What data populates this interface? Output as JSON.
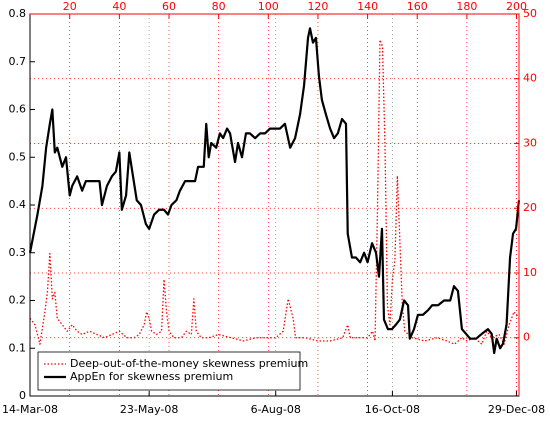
{
  "chart_data": {
    "type": "line",
    "xlim": [
      4,
      201
    ],
    "xticks": [
      {
        "value": 4,
        "label": "14-Mar-08"
      },
      {
        "value": 52,
        "label": "23-May-08"
      },
      {
        "value": 103,
        "label": "6-Aug-08"
      },
      {
        "value": 150,
        "label": "16-Oct-08"
      },
      {
        "value": 200,
        "label": "29-Dec-08"
      }
    ],
    "x2ticks": [
      20,
      40,
      60,
      80,
      100,
      120,
      140,
      160,
      180,
      200
    ],
    "ylim": [
      0,
      0.8
    ],
    "yticks": [
      0,
      0.1,
      0.2,
      0.3,
      0.4,
      0.5,
      0.6,
      0.7,
      0.8
    ],
    "y2lim": [
      -9,
      50
    ],
    "y2ticks": [
      0,
      10,
      20,
      30,
      40,
      50
    ],
    "legend": "lower left",
    "series": [
      {
        "name": "Deep-out-of-the-money skewness premium",
        "color": "#ff0000",
        "style": "dotted",
        "axis": "y2",
        "x": [
          4,
          6,
          8,
          10,
          11,
          12,
          13,
          14,
          15,
          17,
          19,
          21,
          23,
          25,
          28,
          31,
          34,
          37,
          40,
          43,
          46,
          48,
          50,
          51,
          52,
          53,
          55,
          57,
          58,
          59,
          60,
          62,
          65,
          67,
          69,
          70,
          71,
          73,
          76,
          80,
          85,
          90,
          95,
          100,
          103,
          106,
          108,
          110,
          111,
          115,
          120,
          125,
          130,
          132,
          133,
          136,
          140,
          142,
          143,
          144,
          145,
          146,
          147,
          148,
          149,
          150,
          151,
          152,
          153,
          154,
          155,
          158,
          163,
          168,
          172,
          175,
          178,
          180,
          183,
          186,
          188,
          190,
          193,
          195,
          197,
          199,
          201
        ],
        "values": [
          3,
          2,
          -1,
          4,
          7,
          13,
          6,
          7,
          3,
          2,
          1,
          2,
          1,
          0.5,
          1,
          0.5,
          0,
          0.5,
          1,
          0,
          0,
          0.5,
          2,
          4,
          3,
          1,
          0.5,
          1,
          9,
          4,
          1,
          0,
          0,
          1,
          0.5,
          6,
          1,
          0,
          0,
          0.5,
          0,
          -0.5,
          0,
          0,
          0,
          1,
          6,
          3,
          0,
          0,
          -0.5,
          -0.5,
          0,
          2,
          0,
          0,
          0,
          1,
          -0.5,
          20,
          46,
          45,
          30,
          5,
          2,
          9,
          12,
          25,
          15,
          5,
          1,
          0,
          -0.5,
          0,
          -0.5,
          -1,
          0,
          -0.5,
          0,
          -1,
          1,
          0,
          0.5,
          -1,
          2,
          4,
          3
        ]
      },
      {
        "name": "AppEn for skewness premium",
        "color": "#000000",
        "style": "solid",
        "x": [
          4,
          7,
          9,
          10.5,
          12,
          13,
          14,
          15,
          17,
          18.5,
          20,
          21,
          23,
          25,
          26.5,
          30.6,
          32,
          33,
          35,
          37,
          38.6,
          40,
          41,
          42.7,
          44,
          45.5,
          47,
          48.7,
          50.7,
          52,
          54,
          56,
          58,
          59.6,
          61,
          63,
          64.4,
          66.5,
          68.5,
          70.5,
          71.7,
          74,
          75,
          76,
          77,
          79,
          80.5,
          81.8,
          83.4,
          84.6,
          86.6,
          87.8,
          89.4,
          91,
          92.6,
          94.7,
          96.7,
          98.7,
          100.7,
          102.3,
          104.7,
          106.7,
          108.8,
          110.8,
          112.8,
          114.4,
          116,
          116.8,
          118,
          119.2,
          120.4,
          121.6,
          123.2,
          124.9,
          126.5,
          128,
          129.7,
          131.3,
          132,
          133.7,
          135.3,
          137,
          138.6,
          140,
          141.8,
          143.4,
          144.6,
          145.8,
          146.6,
          148.2,
          149.8,
          151.5,
          153,
          154.7,
          156.3,
          157,
          158.7,
          160.3,
          162.3,
          164.4,
          166,
          168.4,
          170.8,
          173.3,
          174.8,
          176.4,
          178,
          179.7,
          181.3,
          183.7,
          186,
          188.5,
          190,
          191,
          192,
          193.4,
          194.6,
          196,
          197.4,
          198.6,
          199.8,
          201
        ],
        "values": [
          0.3,
          0.38,
          0.44,
          0.52,
          0.57,
          0.6,
          0.51,
          0.52,
          0.48,
          0.5,
          0.42,
          0.44,
          0.46,
          0.43,
          0.45,
          0.45,
          0.45,
          0.4,
          0.44,
          0.46,
          0.47,
          0.51,
          0.39,
          0.42,
          0.51,
          0.46,
          0.41,
          0.4,
          0.36,
          0.35,
          0.38,
          0.39,
          0.39,
          0.38,
          0.4,
          0.41,
          0.43,
          0.45,
          0.45,
          0.45,
          0.48,
          0.48,
          0.57,
          0.5,
          0.53,
          0.52,
          0.55,
          0.54,
          0.56,
          0.55,
          0.49,
          0.53,
          0.5,
          0.55,
          0.55,
          0.54,
          0.55,
          0.55,
          0.56,
          0.56,
          0.56,
          0.57,
          0.52,
          0.54,
          0.59,
          0.65,
          0.75,
          0.77,
          0.74,
          0.75,
          0.67,
          0.62,
          0.59,
          0.56,
          0.54,
          0.55,
          0.58,
          0.57,
          0.34,
          0.29,
          0.29,
          0.28,
          0.3,
          0.28,
          0.32,
          0.3,
          0.25,
          0.35,
          0.16,
          0.14,
          0.14,
          0.15,
          0.16,
          0.2,
          0.19,
          0.12,
          0.14,
          0.17,
          0.17,
          0.18,
          0.19,
          0.19,
          0.2,
          0.2,
          0.23,
          0.22,
          0.14,
          0.13,
          0.12,
          0.12,
          0.13,
          0.14,
          0.13,
          0.09,
          0.12,
          0.1,
          0.11,
          0.15,
          0.29,
          0.34,
          0.35,
          0.41
        ]
      }
    ]
  }
}
